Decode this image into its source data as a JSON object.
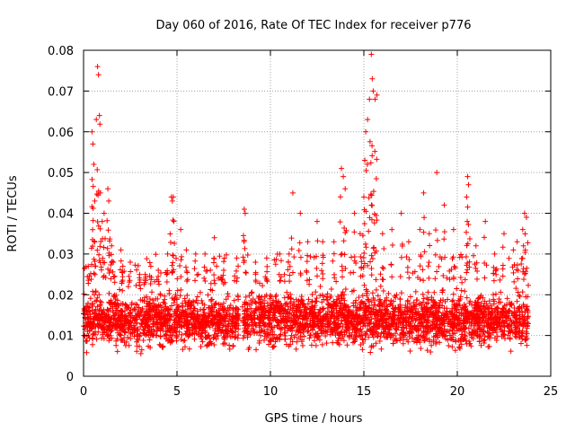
{
  "chart_data": {
    "type": "scatter",
    "title": "Day 060 of 2016, Rate Of TEC Index for receiver p776",
    "xlabel": "GPS time / hours",
    "ylabel": "ROTI / TECUs",
    "xlim": [
      0,
      25
    ],
    "ylim": [
      0,
      0.08
    ],
    "x_ticks": [
      "0",
      "5",
      "10",
      "15",
      "20",
      "25"
    ],
    "y_ticks": [
      "0",
      "0.01",
      "0.02",
      "0.03",
      "0.04",
      "0.05",
      "0.06",
      "0.07",
      "0.08"
    ],
    "grid": true,
    "marker": "+",
    "color": "#ff0000",
    "data_gap_hours": [
      8.3,
      8.5
    ],
    "series": [
      {
        "name": "ROTI",
        "x": [
          0.25,
          0.45,
          0.5,
          0.55,
          0.6,
          0.75,
          0.8,
          0.85,
          0.9,
          1.0,
          1.1,
          1.3,
          1.35,
          1.5,
          1.6,
          2.0,
          2.1,
          2.5,
          3.0,
          3.3,
          3.6,
          4.0,
          4.5,
          4.7,
          4.75,
          4.8,
          5.2,
          5.5,
          6.0,
          6.5,
          7.0,
          7.5,
          8.2,
          8.6,
          8.65,
          9.2,
          9.8,
          10.5,
          11.0,
          11.2,
          11.6,
          12.0,
          12.5,
          12.8,
          13.4,
          13.8,
          13.9,
          14.0,
          14.5,
          14.8,
          15.0,
          15.05,
          15.1,
          15.2,
          15.3,
          15.4,
          15.45,
          15.5,
          15.6,
          15.7,
          16.0,
          16.5,
          17.0,
          17.4,
          18.0,
          18.2,
          18.5,
          18.9,
          19.3,
          19.8,
          20.5,
          20.55,
          20.6,
          21.0,
          21.5,
          22.0,
          22.5,
          23.0,
          23.2,
          23.5,
          23.6,
          23.7
        ],
        "y": [
          0.027,
          0.06,
          0.057,
          0.052,
          0.043,
          0.076,
          0.074,
          0.064,
          0.045,
          0.038,
          0.04,
          0.046,
          0.043,
          0.032,
          0.028,
          0.031,
          0.027,
          0.028,
          0.025,
          0.025,
          0.027,
          0.026,
          0.03,
          0.044,
          0.043,
          0.044,
          0.036,
          0.031,
          0.03,
          0.03,
          0.034,
          0.026,
          0.029,
          0.041,
          0.04,
          0.028,
          0.029,
          0.03,
          0.03,
          0.045,
          0.04,
          0.033,
          0.038,
          0.033,
          0.033,
          0.051,
          0.049,
          0.046,
          0.04,
          0.035,
          0.044,
          0.053,
          0.06,
          0.063,
          0.068,
          0.079,
          0.073,
          0.07,
          0.068,
          0.069,
          0.035,
          0.036,
          0.04,
          0.033,
          0.036,
          0.045,
          0.035,
          0.05,
          0.042,
          0.036,
          0.044,
          0.049,
          0.047,
          0.032,
          0.038,
          0.03,
          0.035,
          0.031,
          0.033,
          0.036,
          0.04,
          0.039
        ],
        "dense_band": {
          "x_ranges": [
            [
              0,
              8.3
            ],
            [
              8.5,
              23.8
            ]
          ],
          "y_min": 0.005,
          "y_max": 0.022,
          "y_typical": 0.013
        }
      }
    ]
  }
}
